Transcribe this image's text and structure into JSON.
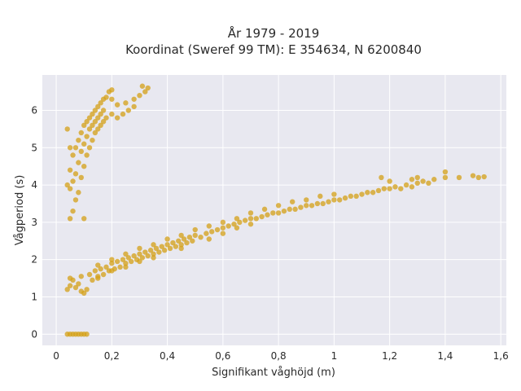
{
  "chart_data": {
    "type": "scatter",
    "title_line1": "År 1979 - 2019",
    "title_line2": "Koordinat (Sweref 99 TM): E 354634, N 6200840",
    "xlabel": "Signifikant våghöjd (m)",
    "ylabel": "Vågperiod (s)",
    "xlim": [
      -0.05,
      1.62
    ],
    "ylim": [
      -0.3,
      6.95
    ],
    "x_ticks": [
      0,
      0.2,
      0.4,
      0.6,
      0.8,
      1,
      1.2,
      1.4,
      1.6
    ],
    "x_tick_labels": [
      "0",
      "0,2",
      "0,4",
      "0,6",
      "0,8",
      "1",
      "1,2",
      "1,4",
      "1,6"
    ],
    "y_ticks": [
      0,
      1,
      2,
      3,
      4,
      5,
      6
    ],
    "y_tick_labels": [
      "0",
      "1",
      "2",
      "3",
      "4",
      "5",
      "6"
    ],
    "grid": true,
    "point_color": "#d4a017",
    "plot_background": "#e8e8f0",
    "series": [
      {
        "values": [
          [
            0.04,
            1.2
          ],
          [
            0.05,
            1.3
          ],
          [
            0.06,
            1.45
          ],
          [
            0.07,
            1.25
          ],
          [
            0.08,
            1.35
          ],
          [
            0.09,
            1.15
          ],
          [
            0.1,
            1.1
          ],
          [
            0.11,
            1.2
          ],
          [
            0.05,
            1.5
          ],
          [
            0.09,
            1.55
          ],
          [
            0.12,
            1.6
          ],
          [
            0.13,
            1.45
          ],
          [
            0.14,
            1.7
          ],
          [
            0.15,
            1.55
          ],
          [
            0.16,
            1.75
          ],
          [
            0.17,
            1.6
          ],
          [
            0.18,
            1.8
          ],
          [
            0.19,
            1.7
          ],
          [
            0.2,
            1.9
          ],
          [
            0.21,
            1.75
          ],
          [
            0.22,
            1.95
          ],
          [
            0.23,
            1.8
          ],
          [
            0.24,
            2.0
          ],
          [
            0.25,
            1.9
          ],
          [
            0.26,
            2.05
          ],
          [
            0.27,
            1.95
          ],
          [
            0.28,
            2.1
          ],
          [
            0.29,
            2.0
          ],
          [
            0.3,
            2.15
          ],
          [
            0.31,
            2.05
          ],
          [
            0.32,
            2.2
          ],
          [
            0.33,
            2.1
          ],
          [
            0.34,
            2.25
          ],
          [
            0.35,
            2.15
          ],
          [
            0.36,
            2.3
          ],
          [
            0.37,
            2.2
          ],
          [
            0.38,
            2.35
          ],
          [
            0.39,
            2.25
          ],
          [
            0.4,
            2.4
          ],
          [
            0.41,
            2.3
          ],
          [
            0.42,
            2.45
          ],
          [
            0.43,
            2.35
          ],
          [
            0.44,
            2.5
          ],
          [
            0.45,
            2.4
          ],
          [
            0.46,
            2.55
          ],
          [
            0.47,
            2.45
          ],
          [
            0.48,
            2.6
          ],
          [
            0.49,
            2.5
          ],
          [
            0.5,
            2.65
          ],
          [
            0.52,
            2.6
          ],
          [
            0.54,
            2.7
          ],
          [
            0.56,
            2.75
          ],
          [
            0.58,
            2.8
          ],
          [
            0.6,
            2.85
          ],
          [
            0.62,
            2.9
          ],
          [
            0.64,
            2.95
          ],
          [
            0.66,
            3.0
          ],
          [
            0.68,
            3.05
          ],
          [
            0.7,
            3.1
          ],
          [
            0.72,
            3.1
          ],
          [
            0.74,
            3.15
          ],
          [
            0.76,
            3.2
          ],
          [
            0.78,
            3.25
          ],
          [
            0.8,
            3.25
          ],
          [
            0.82,
            3.3
          ],
          [
            0.84,
            3.35
          ],
          [
            0.86,
            3.35
          ],
          [
            0.88,
            3.4
          ],
          [
            0.9,
            3.45
          ],
          [
            0.92,
            3.45
          ],
          [
            0.94,
            3.5
          ],
          [
            0.96,
            3.5
          ],
          [
            0.98,
            3.55
          ],
          [
            1.0,
            3.6
          ],
          [
            1.02,
            3.6
          ],
          [
            1.04,
            3.65
          ],
          [
            1.06,
            3.7
          ],
          [
            1.08,
            3.7
          ],
          [
            1.1,
            3.75
          ],
          [
            1.12,
            3.8
          ],
          [
            1.14,
            3.8
          ],
          [
            1.16,
            3.85
          ],
          [
            1.18,
            3.9
          ],
          [
            1.2,
            3.9
          ],
          [
            1.22,
            3.95
          ],
          [
            1.24,
            3.9
          ],
          [
            1.26,
            4.0
          ],
          [
            1.28,
            3.95
          ],
          [
            1.3,
            4.05
          ],
          [
            1.32,
            4.1
          ],
          [
            1.34,
            4.05
          ],
          [
            1.36,
            4.15
          ],
          [
            1.2,
            4.1
          ],
          [
            1.17,
            4.2
          ],
          [
            1.3,
            4.2
          ],
          [
            1.4,
            4.2
          ],
          [
            1.45,
            4.2
          ],
          [
            1.5,
            4.25
          ],
          [
            1.52,
            4.2
          ],
          [
            1.54,
            4.22
          ],
          [
            1.4,
            4.35
          ],
          [
            1.28,
            4.15
          ],
          [
            1.0,
            3.75
          ],
          [
            0.95,
            3.7
          ],
          [
            0.9,
            3.6
          ],
          [
            0.85,
            3.55
          ],
          [
            0.8,
            3.45
          ],
          [
            0.75,
            3.35
          ],
          [
            0.7,
            3.25
          ],
          [
            0.65,
            3.1
          ],
          [
            0.6,
            3.0
          ],
          [
            0.55,
            2.9
          ],
          [
            0.5,
            2.8
          ],
          [
            0.45,
            2.65
          ],
          [
            0.4,
            2.55
          ],
          [
            0.35,
            2.4
          ],
          [
            0.3,
            2.3
          ],
          [
            0.25,
            2.15
          ],
          [
            0.2,
            2.0
          ],
          [
            0.15,
            1.85
          ],
          [
            0.55,
            2.55
          ],
          [
            0.6,
            2.7
          ],
          [
            0.65,
            2.85
          ],
          [
            0.7,
            2.95
          ],
          [
            0.45,
            2.3
          ],
          [
            0.35,
            2.05
          ],
          [
            0.3,
            1.95
          ],
          [
            0.25,
            1.8
          ],
          [
            0.2,
            1.7
          ],
          [
            0.15,
            1.5
          ],
          [
            0.04,
            4.0
          ],
          [
            0.05,
            4.4
          ],
          [
            0.06,
            4.8
          ],
          [
            0.07,
            5.0
          ],
          [
            0.08,
            5.2
          ],
          [
            0.09,
            5.4
          ],
          [
            0.1,
            5.6
          ],
          [
            0.11,
            5.7
          ],
          [
            0.12,
            5.8
          ],
          [
            0.13,
            5.9
          ],
          [
            0.14,
            6.0
          ],
          [
            0.15,
            6.1
          ],
          [
            0.16,
            6.2
          ],
          [
            0.17,
            6.3
          ],
          [
            0.18,
            6.35
          ],
          [
            0.2,
            6.3
          ],
          [
            0.22,
            6.15
          ],
          [
            0.25,
            6.2
          ],
          [
            0.28,
            6.3
          ],
          [
            0.3,
            6.4
          ],
          [
            0.32,
            6.5
          ],
          [
            0.33,
            6.6
          ],
          [
            0.31,
            6.65
          ],
          [
            0.19,
            6.5
          ],
          [
            0.2,
            6.55
          ],
          [
            0.05,
            3.1
          ],
          [
            0.06,
            3.3
          ],
          [
            0.07,
            3.6
          ],
          [
            0.08,
            3.8
          ],
          [
            0.09,
            4.2
          ],
          [
            0.1,
            4.5
          ],
          [
            0.11,
            4.8
          ],
          [
            0.12,
            5.0
          ],
          [
            0.13,
            5.2
          ],
          [
            0.14,
            5.4
          ],
          [
            0.15,
            5.5
          ],
          [
            0.16,
            5.6
          ],
          [
            0.17,
            5.7
          ],
          [
            0.18,
            5.8
          ],
          [
            0.2,
            5.9
          ],
          [
            0.22,
            5.8
          ],
          [
            0.24,
            5.9
          ],
          [
            0.26,
            6.0
          ],
          [
            0.28,
            6.1
          ],
          [
            0.1,
            3.1
          ],
          [
            0.05,
            3.9
          ],
          [
            0.06,
            4.1
          ],
          [
            0.07,
            4.3
          ],
          [
            0.08,
            4.6
          ],
          [
            0.09,
            4.9
          ],
          [
            0.1,
            5.1
          ],
          [
            0.11,
            5.3
          ],
          [
            0.12,
            5.5
          ],
          [
            0.13,
            5.6
          ],
          [
            0.14,
            5.7
          ],
          [
            0.15,
            5.8
          ],
          [
            0.16,
            5.9
          ],
          [
            0.17,
            6.0
          ],
          [
            0.04,
            5.5
          ],
          [
            0.05,
            5.0
          ],
          [
            0.04,
            0.0
          ],
          [
            0.05,
            0.0
          ],
          [
            0.06,
            0.0
          ],
          [
            0.07,
            0.0
          ],
          [
            0.08,
            0.0
          ],
          [
            0.09,
            0.0
          ],
          [
            0.1,
            0.0
          ],
          [
            0.11,
            0.0
          ]
        ]
      }
    ]
  }
}
